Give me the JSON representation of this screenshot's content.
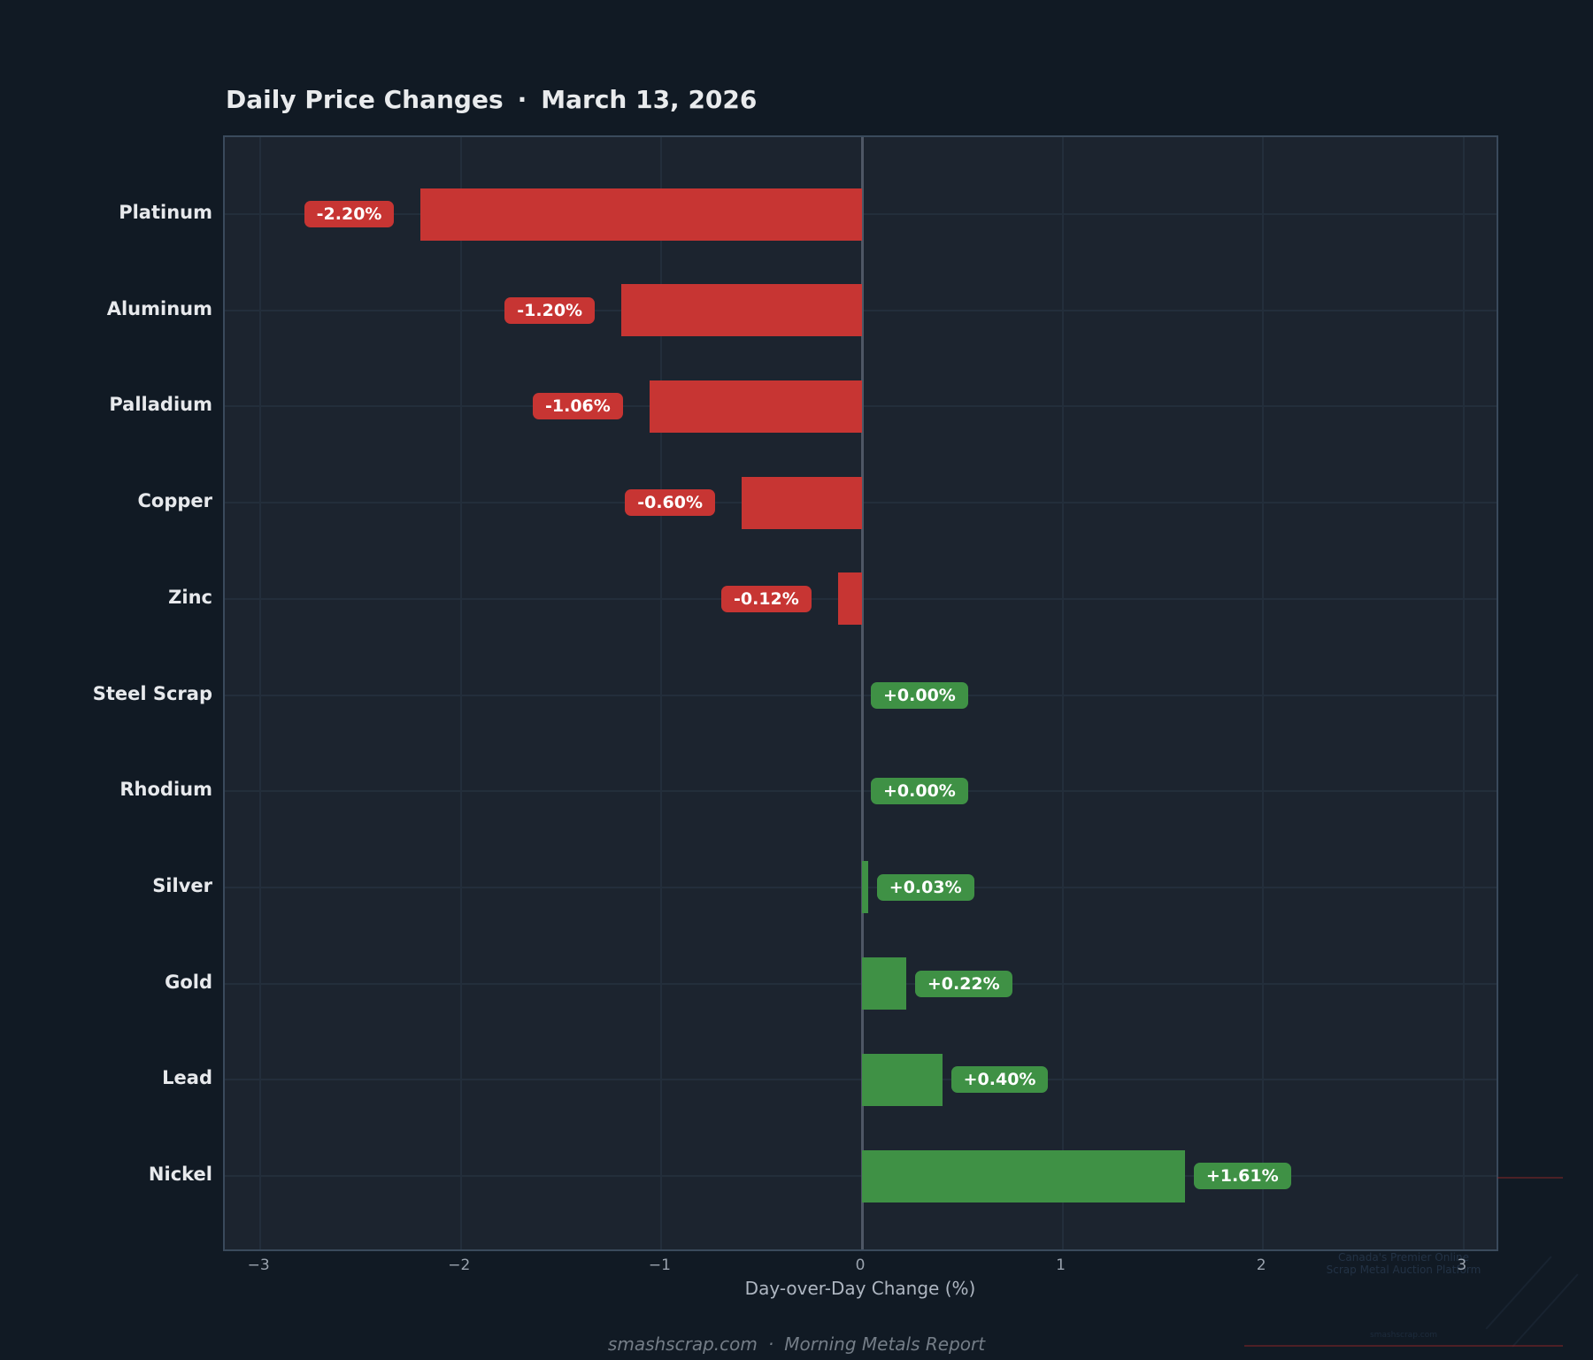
{
  "header": {
    "title_text": "Daily Price Changes",
    "separator": "·",
    "date": "March 13, 2026"
  },
  "chart_data": {
    "type": "bar",
    "orientation": "horizontal",
    "title": "Daily Price Changes · March 13, 2026",
    "xlabel": "Day-over-Day Change (%)",
    "ylabel": "",
    "categories": [
      "Platinum",
      "Aluminum",
      "Palladium",
      "Copper",
      "Zinc",
      "Steel Scrap",
      "Rhodium",
      "Silver",
      "Gold",
      "Lead",
      "Nickel"
    ],
    "values": [
      -2.2,
      -1.2,
      -1.06,
      -0.6,
      -0.12,
      0.0,
      0.0,
      0.03,
      0.22,
      0.4,
      1.61
    ],
    "value_labels": [
      "-2.20%",
      "-1.20%",
      "-1.06%",
      "-0.60%",
      "-0.12%",
      "+0.00%",
      "+0.00%",
      "+0.03%",
      "+0.22%",
      "+0.40%",
      "+1.61%"
    ],
    "xlim": [
      -3.18,
      3.18
    ],
    "x_ticks": [
      -3,
      -2,
      -1,
      0,
      1,
      2,
      3
    ],
    "x_tick_labels": [
      "−3",
      "−2",
      "−1",
      "0",
      "1",
      "2",
      "3"
    ],
    "grid": true,
    "legend": "none",
    "negative_color": "#c73533",
    "positive_color": "#3f9145",
    "plot_background": "#1c242f",
    "page_background": "#111a24"
  },
  "footer": {
    "site": "smashscrap.com",
    "separator": "·",
    "report": "Morning Metals Report"
  },
  "watermark": {
    "line1": "Canada's Premier Online",
    "line2": "Scrap Metal Auction Platform",
    "site": "smashscrap.com"
  }
}
